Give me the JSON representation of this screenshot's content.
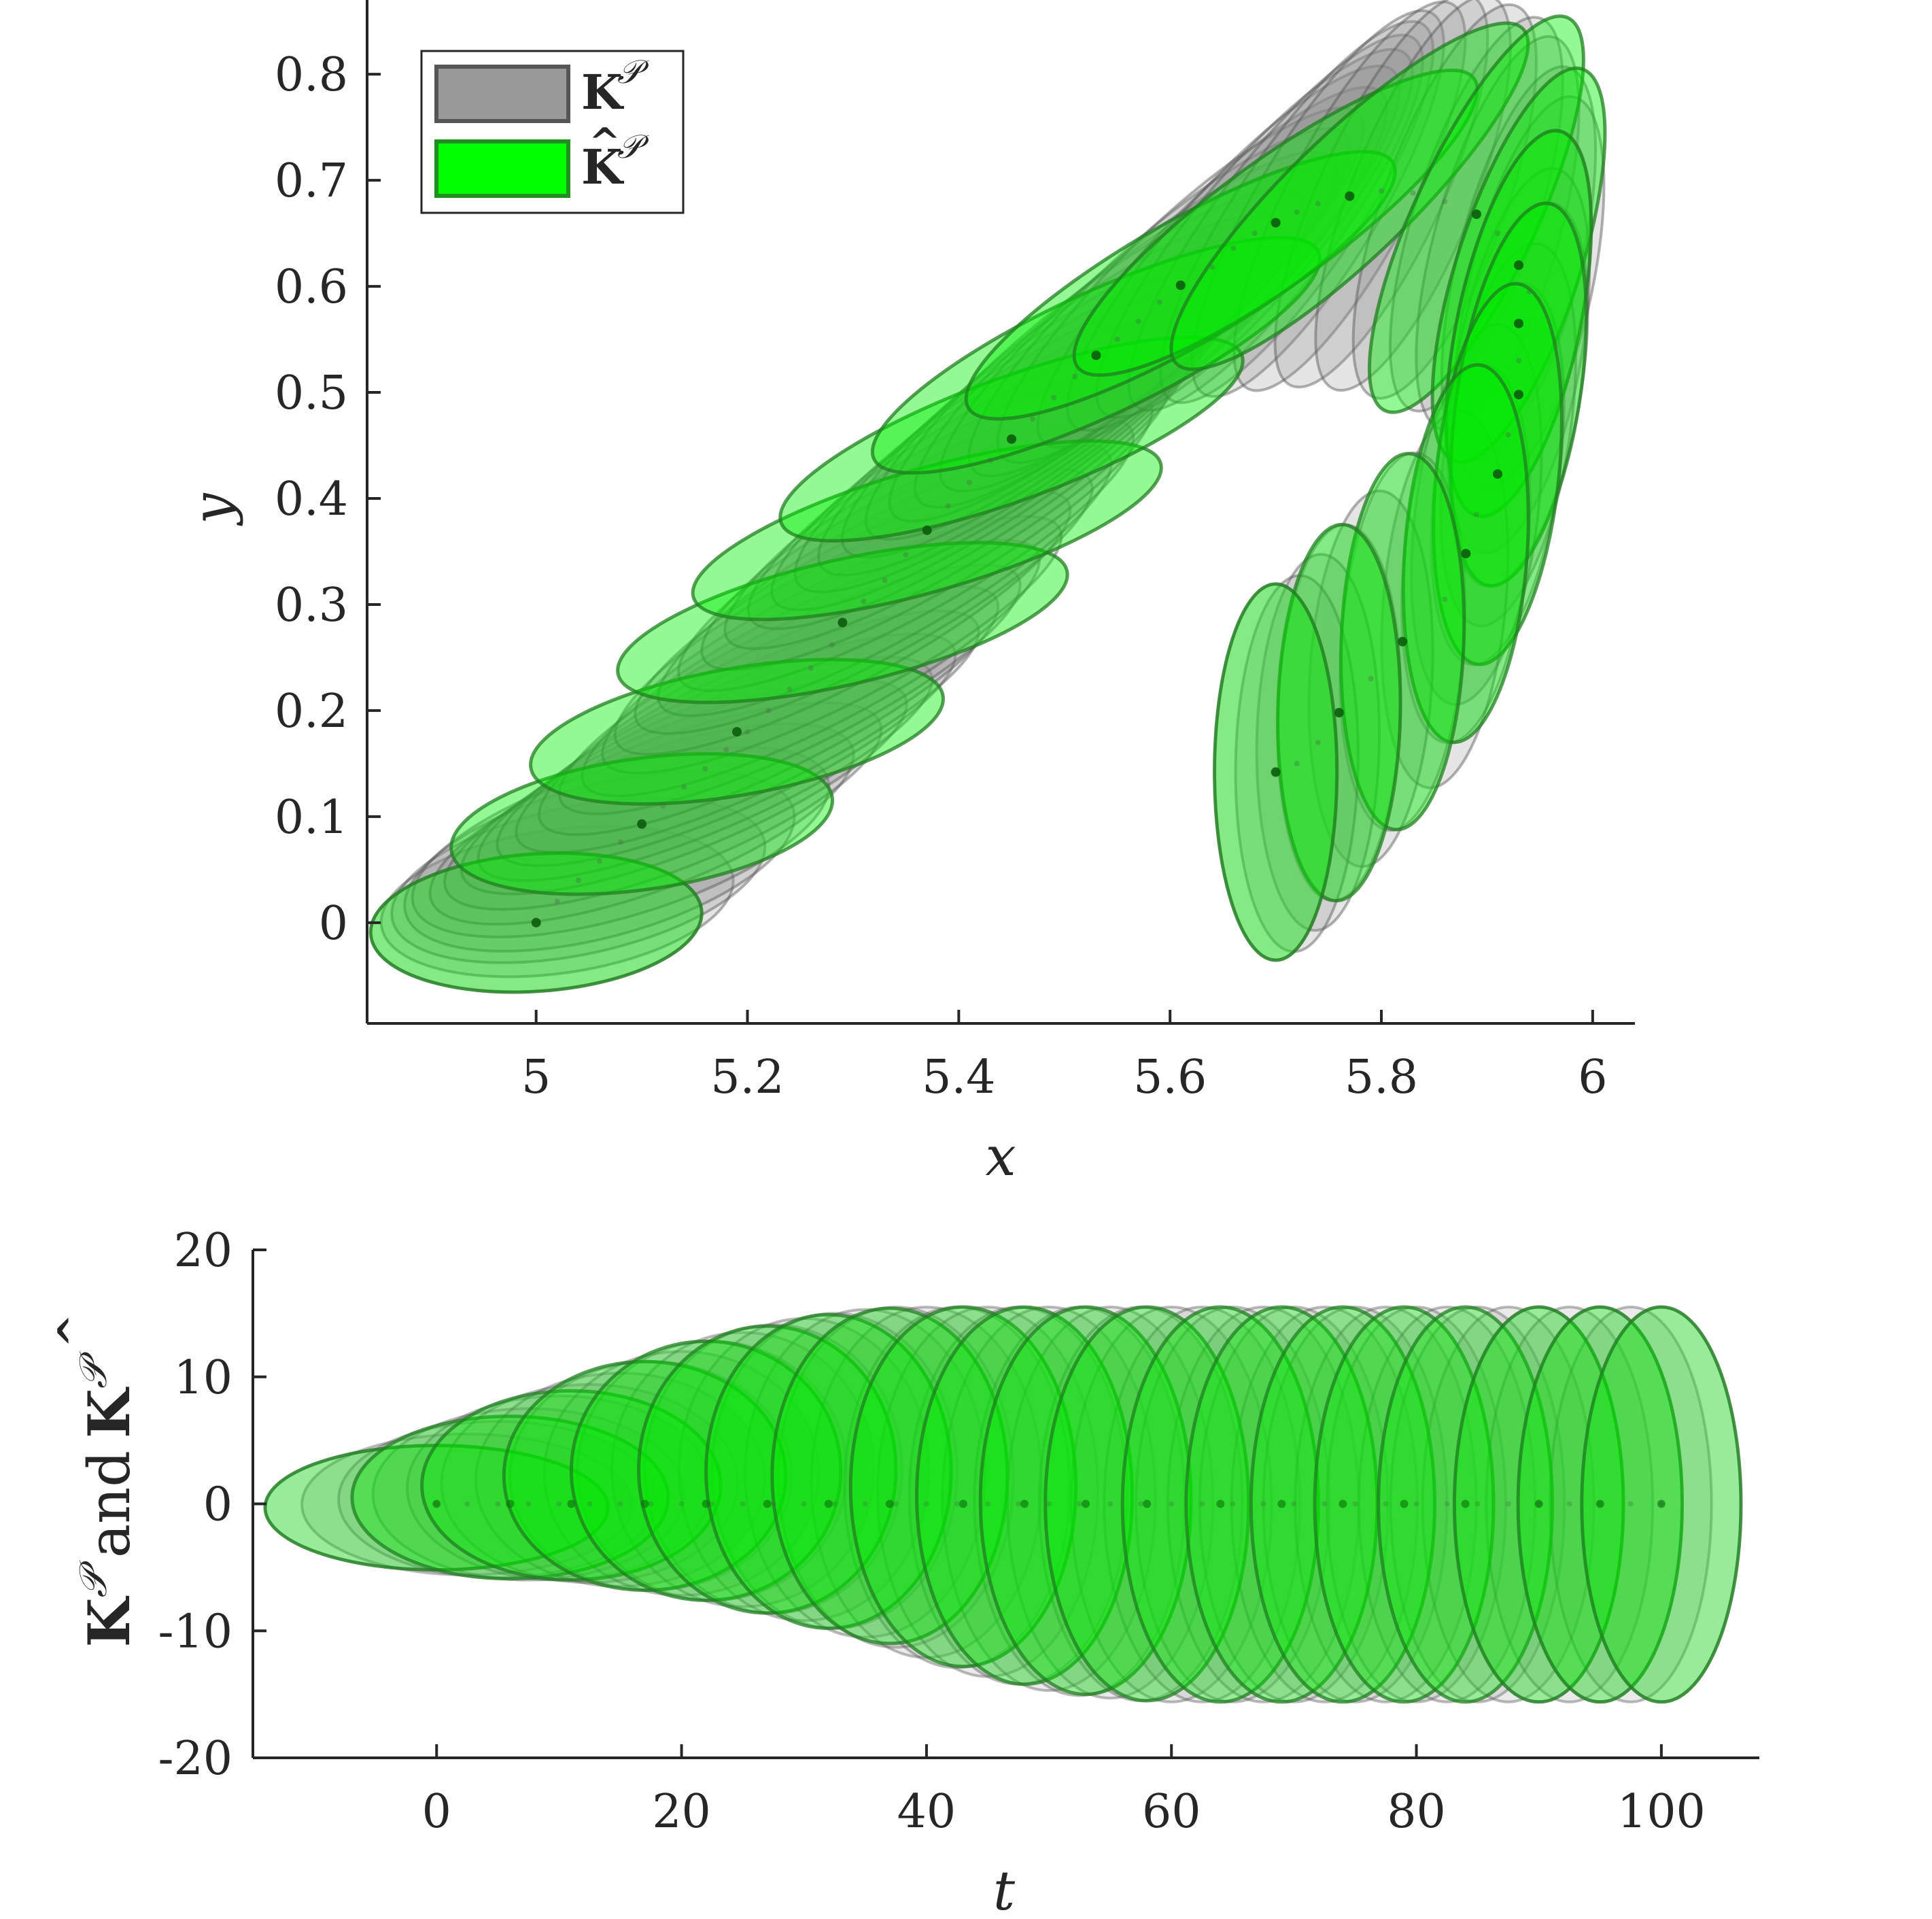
{
  "chart_data": [
    {
      "type": "scatter",
      "xlabel": "x",
      "ylabel": "y",
      "xlim": [
        4.84,
        6.04
      ],
      "ylim": [
        -0.095,
        0.87
      ],
      "xticks": [
        "5",
        "5.2",
        "5.4",
        "5.6",
        "5.8",
        "6"
      ],
      "yticks": [
        "0",
        "0.1",
        "0.2",
        "0.3",
        "0.4",
        "0.5",
        "0.6",
        "0.7",
        "0.8"
      ],
      "legend": {
        "placement": "top-left",
        "entries": [
          {
            "label": "K",
            "sup": "𝒫",
            "hat": false,
            "color": "#999999"
          },
          {
            "label": "K",
            "sup": "𝒫",
            "hat": true,
            "color": "#00ff00"
          }
        ]
      },
      "series": [
        {
          "name": "K^P",
          "color": "#808080",
          "centers": [
            [
              5.0,
              0.0
            ],
            [
              5.02,
              0.02
            ],
            [
              5.04,
              0.04
            ],
            [
              5.06,
              0.058
            ],
            [
              5.08,
              0.076
            ],
            [
              5.1,
              0.093
            ],
            [
              5.12,
              0.11
            ],
            [
              5.14,
              0.128
            ],
            [
              5.16,
              0.145
            ],
            [
              5.18,
              0.163
            ],
            [
              5.2,
              0.18
            ],
            [
              5.22,
              0.2
            ],
            [
              5.24,
              0.22
            ],
            [
              5.26,
              0.24
            ],
            [
              5.28,
              0.262
            ],
            [
              5.29,
              0.283
            ],
            [
              5.31,
              0.303
            ],
            [
              5.33,
              0.323
            ],
            [
              5.35,
              0.347
            ],
            [
              5.37,
              0.37
            ],
            [
              5.39,
              0.393
            ],
            [
              5.41,
              0.415
            ],
            [
              5.43,
              0.436
            ],
            [
              5.45,
              0.456
            ],
            [
              5.47,
              0.475
            ],
            [
              5.49,
              0.495
            ],
            [
              5.51,
              0.515
            ],
            [
              5.53,
              0.535
            ],
            [
              5.55,
              0.55
            ],
            [
              5.57,
              0.567
            ],
            [
              5.59,
              0.585
            ],
            [
              5.61,
              0.601
            ],
            [
              5.64,
              0.618
            ],
            [
              5.66,
              0.636
            ],
            [
              5.68,
              0.65
            ],
            [
              5.7,
              0.66
            ],
            [
              5.72,
              0.67
            ],
            [
              5.74,
              0.678
            ],
            [
              5.77,
              0.685
            ],
            [
              5.8,
              0.69
            ],
            [
              5.83,
              0.688
            ],
            [
              5.86,
              0.68
            ],
            [
              5.89,
              0.668
            ],
            [
              5.91,
              0.65
            ],
            [
              5.93,
              0.622
            ],
            [
              5.94,
              0.595
            ],
            [
              5.93,
              0.565
            ],
            [
              5.93,
              0.53
            ],
            [
              5.93,
              0.498
            ],
            [
              5.92,
              0.46
            ],
            [
              5.91,
              0.423
            ],
            [
              5.89,
              0.385
            ],
            [
              5.88,
              0.348
            ],
            [
              5.86,
              0.305
            ],
            [
              5.82,
              0.265
            ],
            [
              5.79,
              0.23
            ],
            [
              5.76,
              0.198
            ],
            [
              5.74,
              0.17
            ],
            [
              5.72,
              0.15
            ],
            [
              5.7,
              0.142
            ]
          ],
          "axes": [
            [
              0.157,
              0.065,
              -4
            ],
            [
              0.168,
              0.068,
              -8
            ],
            [
              0.18,
              0.07,
              -12
            ],
            [
              0.19,
              0.072,
              -15
            ],
            [
              0.205,
              0.07,
              -17
            ],
            [
              0.212,
              0.065,
              -20
            ],
            [
              0.22,
              0.062,
              -21
            ],
            [
              0.226,
              0.06,
              -22
            ],
            [
              0.232,
              0.059,
              -23
            ],
            [
              0.236,
              0.058,
              -24
            ],
            [
              0.24,
              0.058,
              -25
            ],
            [
              0.24,
              0.058,
              -26
            ],
            [
              0.241,
              0.058,
              -26
            ],
            [
              0.241,
              0.058,
              -27
            ],
            [
              0.242,
              0.058,
              -27
            ],
            [
              0.242,
              0.058,
              -28
            ],
            [
              0.243,
              0.058,
              -28
            ],
            [
              0.243,
              0.058,
              -29
            ],
            [
              0.244,
              0.058,
              -29
            ],
            [
              0.244,
              0.058,
              -30
            ],
            [
              0.244,
              0.058,
              -31
            ],
            [
              0.244,
              0.058,
              -32
            ],
            [
              0.244,
              0.058,
              -33
            ],
            [
              0.244,
              0.058,
              -34
            ],
            [
              0.244,
              0.058,
              -35
            ],
            [
              0.244,
              0.058,
              -36
            ],
            [
              0.244,
              0.058,
              -37
            ],
            [
              0.244,
              0.058,
              -38
            ],
            [
              0.242,
              0.058,
              -39
            ],
            [
              0.24,
              0.058,
              -40
            ],
            [
              0.237,
              0.058,
              -42
            ],
            [
              0.234,
              0.058,
              -44
            ],
            [
              0.23,
              0.058,
              -46
            ],
            [
              0.226,
              0.058,
              -48
            ],
            [
              0.222,
              0.058,
              -50
            ],
            [
              0.218,
              0.058,
              -53
            ],
            [
              0.214,
              0.058,
              -56
            ],
            [
              0.21,
              0.058,
              -59
            ],
            [
              0.206,
              0.058,
              -62
            ],
            [
              0.203,
              0.058,
              -65
            ],
            [
              0.2,
              0.058,
              -68
            ],
            [
              0.197,
              0.058,
              -70
            ],
            [
              0.195,
              0.058,
              -72
            ],
            [
              0.193,
              0.058,
              -74
            ],
            [
              0.191,
              0.058,
              -76
            ],
            [
              0.189,
              0.058,
              -77
            ],
            [
              0.187,
              0.058,
              -78
            ],
            [
              0.185,
              0.058,
              -79
            ],
            [
              0.184,
              0.058,
              -80
            ],
            [
              0.183,
              0.058,
              -81
            ],
            [
              0.182,
              0.058,
              -82
            ],
            [
              0.181,
              0.058,
              -83
            ],
            [
              0.18,
              0.058,
              -84
            ],
            [
              0.179,
              0.058,
              -85
            ],
            [
              0.179,
              0.058,
              -86
            ],
            [
              0.178,
              0.058,
              -87
            ],
            [
              0.178,
              0.058,
              -88
            ],
            [
              0.178,
              0.058,
              -89
            ],
            [
              0.178,
              0.058,
              -89
            ],
            [
              0.178,
              0.058,
              -90
            ]
          ]
        },
        {
          "name": "Khat^P",
          "color": "#00ff00",
          "centers": [
            [
              5.0,
              0.0
            ],
            [
              5.1,
              0.093
            ],
            [
              5.19,
              0.18
            ],
            [
              5.29,
              0.283
            ],
            [
              5.37,
              0.37
            ],
            [
              5.45,
              0.456
            ],
            [
              5.53,
              0.535
            ],
            [
              5.61,
              0.601
            ],
            [
              5.7,
              0.66
            ],
            [
              5.77,
              0.685
            ],
            [
              5.89,
              0.668
            ],
            [
              5.93,
              0.62
            ],
            [
              5.93,
              0.565
            ],
            [
              5.93,
              0.498
            ],
            [
              5.91,
              0.423
            ],
            [
              5.88,
              0.348
            ],
            [
              5.82,
              0.265
            ],
            [
              5.76,
              0.198
            ],
            [
              5.7,
              0.142
            ]
          ],
          "axes": [
            [
              0.157,
              0.065,
              -4
            ],
            [
              0.182,
              0.062,
              -8
            ],
            [
              0.198,
              0.06,
              -10
            ],
            [
              0.218,
              0.059,
              -13
            ],
            [
              0.23,
              0.058,
              -16
            ],
            [
              0.232,
              0.058,
              -20
            ],
            [
              0.232,
              0.058,
              -25
            ],
            [
              0.232,
              0.058,
              -30
            ],
            [
              0.232,
              0.058,
              -36
            ],
            [
              0.228,
              0.058,
              -44
            ],
            [
              0.205,
              0.058,
              -65
            ],
            [
              0.195,
              0.058,
              -72
            ],
            [
              0.186,
              0.058,
              -78
            ],
            [
              0.183,
              0.058,
              -81
            ],
            [
              0.181,
              0.058,
              -84
            ],
            [
              0.179,
              0.058,
              -86
            ],
            [
              0.178,
              0.058,
              -88
            ],
            [
              0.178,
              0.058,
              -89
            ],
            [
              0.178,
              0.058,
              -90
            ]
          ]
        }
      ]
    },
    {
      "type": "scatter",
      "xlabel": "t",
      "ylabel": "and",
      "ylabel_parts": {
        "left": "K",
        "left_sup": "𝒫",
        "middle": "and",
        "right": "K",
        "right_sup": "𝒫",
        "right_hat": true
      },
      "xlim": [
        -15,
        108
      ],
      "ylim": [
        -20,
        20
      ],
      "xticks": [
        "0",
        "20",
        "40",
        "60",
        "80",
        "100"
      ],
      "yticks": [
        "-20",
        "-10",
        "0",
        "10",
        "20"
      ],
      "series": [
        {
          "name": "K^P",
          "color": "#808080",
          "centers_t": [
            0,
            2.5,
            5,
            7.5,
            10,
            12.5,
            15,
            17.5,
            20,
            22.5,
            25,
            27.5,
            30,
            32.5,
            35,
            37.5,
            40,
            42.5,
            45,
            47.5,
            50,
            52.5,
            55,
            57.5,
            60,
            62.5,
            65,
            67.5,
            70,
            72.5,
            75,
            77.5,
            80,
            82.5,
            85,
            87.5,
            90,
            92.5,
            95,
            97.5,
            100
          ],
          "upper": [
            4.6,
            5.5,
            6.5,
            7.5,
            8.5,
            9.4,
            10.3,
            11.2,
            12.0,
            12.8,
            13.5,
            14.1,
            14.6,
            15.0,
            15.3,
            15.5,
            15.5,
            15.5,
            15.5,
            15.5,
            15.5,
            15.5,
            15.5,
            15.5,
            15.5,
            15.5,
            15.5,
            15.5,
            15.5,
            15.5,
            15.5,
            15.5,
            15.5,
            15.5,
            15.5,
            15.5,
            15.5,
            15.5,
            15.5,
            15.5,
            15.5
          ],
          "lower": [
            -5.2,
            -5.6,
            -5.8,
            -6.0,
            -6.0,
            -6.2,
            -6.5,
            -6.8,
            -7.2,
            -7.6,
            -8.1,
            -8.6,
            -9.2,
            -9.8,
            -10.5,
            -11.3,
            -12.1,
            -12.9,
            -13.6,
            -14.2,
            -14.7,
            -15.1,
            -15.3,
            -15.5,
            -15.6,
            -15.6,
            -15.6,
            -15.6,
            -15.6,
            -15.6,
            -15.6,
            -15.6,
            -15.6,
            -15.6,
            -15.6,
            -15.6,
            -15.6,
            -15.6,
            -15.6,
            -15.6,
            -15.6
          ],
          "halfwidth": [
            14,
            13.5,
            13,
            12.7,
            12.4,
            12.1,
            11.8,
            11.5,
            11.2,
            11,
            10.7,
            10.5,
            10.2,
            10,
            9.8,
            9.6,
            9.4,
            9.2,
            9,
            8.9,
            8.7,
            8.6,
            8.4,
            8.3,
            8.2,
            8,
            7.9,
            7.8,
            7.7,
            7.6,
            7.5,
            7.4,
            7.3,
            7.2,
            7.1,
            7,
            6.9,
            6.8,
            6.7,
            6.6,
            6.5
          ]
        },
        {
          "name": "Khat^P",
          "color": "#00ff00",
          "centers_t": [
            0,
            6,
            11,
            17,
            22,
            27,
            32,
            37,
            43,
            48,
            53,
            58,
            64,
            69,
            74,
            79,
            84,
            90,
            95,
            100
          ],
          "upper": [
            4.6,
            6.9,
            8.9,
            11.2,
            12.8,
            14.0,
            14.9,
            15.4,
            15.5,
            15.5,
            15.5,
            15.5,
            15.5,
            15.5,
            15.5,
            15.5,
            15.5,
            15.5,
            15.5,
            15.5
          ],
          "lower": [
            -5.2,
            -5.9,
            -6.0,
            -6.8,
            -7.6,
            -8.6,
            -9.8,
            -11.0,
            -12.8,
            -14.2,
            -15.0,
            -15.5,
            -15.6,
            -15.6,
            -15.6,
            -15.6,
            -15.6,
            -15.6,
            -15.6,
            -15.6
          ],
          "halfwidth": [
            14,
            12.9,
            12.2,
            11.5,
            11,
            10.5,
            10,
            9.6,
            9.2,
            8.8,
            8.6,
            8.3,
            8,
            7.8,
            7.5,
            7.3,
            7.1,
            6.9,
            6.7,
            6.5
          ]
        }
      ]
    }
  ]
}
